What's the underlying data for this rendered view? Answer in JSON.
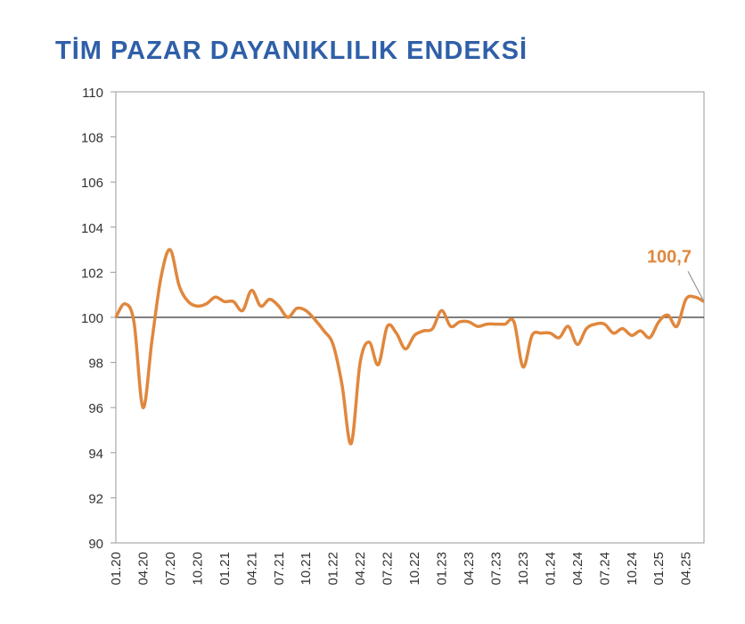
{
  "chart_data": {
    "type": "line",
    "title": "TİM PAZAR DAYANIKLILIK ENDEKSİ",
    "categories": [
      "01.20",
      null,
      null,
      "04.20",
      null,
      null,
      "07.20",
      null,
      null,
      "10.20",
      null,
      null,
      "01.21",
      null,
      null,
      "04.21",
      null,
      null,
      "07.21",
      null,
      null,
      "10.21",
      null,
      null,
      "01.22",
      null,
      null,
      "04.22",
      null,
      null,
      "07.22",
      null,
      null,
      "10.22",
      null,
      null,
      "01.23",
      null,
      null,
      "04.23",
      null,
      null,
      "07.23",
      null,
      null,
      "10.23",
      null,
      null,
      "01.24",
      null,
      null,
      "04.24",
      null,
      null,
      "07.24",
      null,
      null,
      "10.24",
      null,
      null,
      "01.25",
      null,
      null,
      "04.25",
      null,
      null
    ],
    "series": [
      {
        "color": "#e0873d",
        "values": [
          100.0,
          100.6,
          99.8,
          96.0,
          99.0,
          101.8,
          103.0,
          101.4,
          100.7,
          100.5,
          100.6,
          100.9,
          100.7,
          100.7,
          100.3,
          101.2,
          100.5,
          100.8,
          100.5,
          100.0,
          100.4,
          100.3,
          99.9,
          99.4,
          98.8,
          97.0,
          94.4,
          98.0,
          98.9,
          97.9,
          99.6,
          99.3,
          98.6,
          99.2,
          99.4,
          99.5,
          100.3,
          99.6,
          99.8,
          99.8,
          99.6,
          99.7,
          99.7,
          99.7,
          99.8,
          97.8,
          99.2,
          99.3,
          99.3,
          99.1,
          99.6,
          98.8,
          99.5,
          99.7,
          99.7,
          99.3,
          99.5,
          99.2,
          99.4,
          99.1,
          99.8,
          100.1,
          99.6,
          100.8,
          100.9,
          100.7
        ],
        "value_labels": [
          null,
          null,
          null,
          null,
          null,
          null,
          null,
          null,
          null,
          null,
          null,
          null,
          null,
          null,
          null,
          null,
          null,
          null,
          null,
          null,
          null,
          null,
          null,
          null,
          null,
          null,
          null,
          null,
          null,
          null,
          null,
          null,
          null,
          null,
          null,
          null,
          null,
          null,
          null,
          null,
          null,
          null,
          null,
          null,
          null,
          null,
          null,
          null,
          null,
          null,
          null,
          null,
          null,
          null,
          null,
          null,
          null,
          null,
          null,
          null,
          null,
          null,
          null,
          null,
          null,
          "100,7"
        ]
      }
    ],
    "ylim": [
      90,
      110
    ],
    "yticks": [
      90,
      92,
      94,
      96,
      98,
      100,
      102,
      104,
      106,
      108,
      110
    ],
    "reference_line": 100
  }
}
